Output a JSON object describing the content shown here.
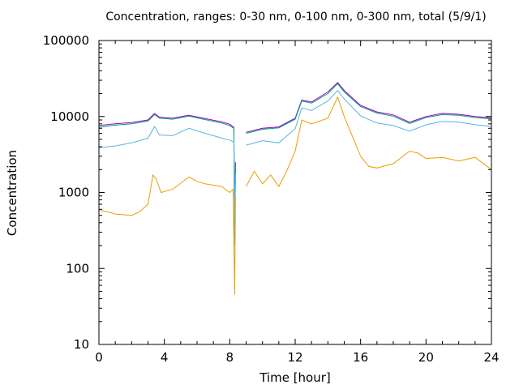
{
  "chart_data": {
    "type": "line",
    "title": "Concentration, ranges: 0-30 nm, 0-100 nm, 0-300 nm, total (5/9/1)",
    "xlabel": "Time [hour]",
    "ylabel": "Concentration",
    "xlim": [
      0,
      24
    ],
    "ylim": [
      10,
      100000
    ],
    "yscale": "log",
    "grid": false,
    "legend": "none",
    "x_ticks": [
      0,
      4,
      8,
      12,
      16,
      20,
      24
    ],
    "x_tick_labels": [
      "0",
      "4",
      "8",
      "12",
      "16",
      "20",
      "24"
    ],
    "y_ticks": [
      10,
      100,
      1000,
      10000,
      100000
    ],
    "y_tick_labels": [
      "10",
      "100",
      "1000",
      "10000",
      "100000"
    ],
    "series": [
      {
        "color": "#9400d3",
        "x": [
          0,
          1,
          2,
          3,
          3.4,
          3.7,
          4.5,
          5.5,
          6.5,
          7.5,
          8.0,
          8.25,
          8.3,
          8.35,
          8.4,
          9.0,
          10.0,
          11.0,
          12.0,
          12.4,
          13.0,
          14.0,
          14.6,
          15.0,
          16.0,
          17.0,
          18.0,
          19.0,
          20.0,
          21.0,
          22.0,
          23.0,
          24.0
        ],
        "y": [
          7600,
          8000,
          8300,
          9000,
          11000,
          9800,
          9500,
          10400,
          9400,
          8500,
          7900,
          7200,
          250,
          2500,
          null,
          6200,
          7000,
          7300,
          9500,
          16500,
          15500,
          21000,
          28000,
          22000,
          14000,
          11500,
          10500,
          8400,
          10000,
          11000,
          10700,
          10000,
          9600
        ]
      },
      {
        "color": "#009e73",
        "x": [
          0,
          1,
          2,
          3,
          3.4,
          3.7,
          4.5,
          5.5,
          6.5,
          7.5,
          8.0,
          8.25,
          8.3,
          8.35,
          8.4,
          9.0,
          10.0,
          11.0,
          12.0,
          12.4,
          13.0,
          14.0,
          14.6,
          15.0,
          16.0,
          17.0,
          18.0,
          19.0,
          20.0,
          21.0,
          22.0,
          23.0,
          24.0
        ],
        "y": [
          7200,
          7700,
          8000,
          8700,
          10600,
          9500,
          9200,
          10100,
          9100,
          8200,
          7600,
          7000,
          200,
          2400,
          null,
          6000,
          6800,
          7100,
          9200,
          16000,
          15000,
          20000,
          27000,
          21000,
          13500,
          11100,
          10100,
          8100,
          9700,
          10600,
          10400,
          9700,
          9300
        ]
      },
      {
        "color": "#56b4e9",
        "x": [
          0,
          1,
          2,
          3,
          3.4,
          3.7,
          4.5,
          5.5,
          6.5,
          7.5,
          8.0,
          8.25,
          8.3,
          8.35,
          8.4,
          9.0,
          10.0,
          11.0,
          12.0,
          12.4,
          13.0,
          14.0,
          14.6,
          15.0,
          16.0,
          17.0,
          18.0,
          19.0,
          20.0,
          21.0,
          22.0,
          23.0,
          24.0
        ],
        "y": [
          3900,
          4100,
          4500,
          5200,
          7400,
          5700,
          5600,
          7000,
          6000,
          5200,
          4900,
          4600,
          200,
          1800,
          null,
          4200,
          4800,
          4500,
          6900,
          13000,
          12000,
          16000,
          22000,
          17000,
          10200,
          8200,
          7600,
          6400,
          7800,
          8600,
          8400,
          7800,
          7400
        ]
      },
      {
        "color": "#e69f00",
        "x": [
          0,
          0.5,
          1,
          2,
          2.5,
          3,
          3.3,
          3.5,
          3.8,
          4.5,
          5.5,
          6.0,
          6.5,
          7.5,
          8.0,
          8.2,
          8.3,
          8.35,
          8.4,
          9.0,
          9.5,
          10.0,
          10.5,
          11.0,
          11.5,
          12.0,
          12.4,
          13.0,
          14.0,
          14.6,
          15.0,
          16.0,
          16.5,
          17.0,
          18.0,
          19.0,
          19.5,
          20.0,
          21.0,
          22.0,
          23.0,
          24.0
        ],
        "y": [
          580,
          560,
          520,
          500,
          560,
          700,
          1700,
          1500,
          1000,
          1100,
          1600,
          1400,
          1300,
          1200,
          1000,
          1100,
          45,
          900,
          null,
          1200,
          1900,
          1300,
          1700,
          1200,
          1950,
          3500,
          9000,
          8000,
          9500,
          18000,
          10000,
          3000,
          2200,
          2100,
          2400,
          3500,
          3300,
          2800,
          2900,
          2600,
          2900,
          2000
        ]
      }
    ]
  }
}
